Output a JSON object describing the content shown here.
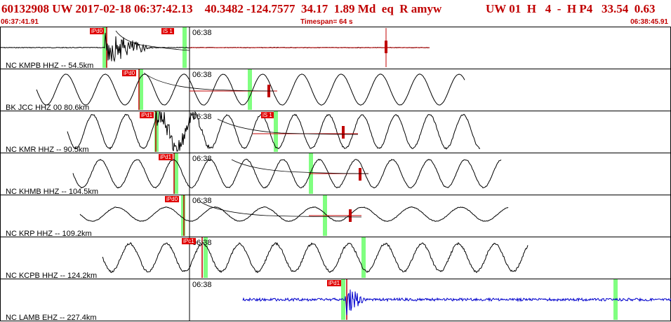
{
  "header": {
    "left": "60132908 UW 2017-02-18 06:37:42.13    40.3482 -124.7577  34.17  1.89 Md  eq  R amyw",
    "right": "UW 01  H   4  -  H P4   33.54  0.63"
  },
  "subbar": {
    "start": "06:37:41.91",
    "timespan": "Timespan=  64 s",
    "end": "06:38:45.91"
  },
  "panels": [
    {
      "label": "NC KMPB HHZ -- 54.5km",
      "time": "06:38",
      "picks": [
        "iPd0",
        "iS 1"
      ]
    },
    {
      "label": "BK JCC HHZ 00 80.6km",
      "time": "06:38",
      "picks": [
        "iPd0"
      ]
    },
    {
      "label": "NC KMR HHZ -- 90.5km",
      "time": "06:38",
      "picks": [
        "iPd1",
        "iS 1"
      ]
    },
    {
      "label": "NC KHMB HHZ -- 104.5km",
      "time": "06:38",
      "picks": [
        "iPd1"
      ]
    },
    {
      "label": "NC KRP HHZ -- 109.2km",
      "time": "06:38",
      "picks": [
        "iPd0"
      ]
    },
    {
      "label": "NC KCPB HHZ -- 124.2km",
      "time": "06:38",
      "picks": [
        "iPc1"
      ]
    },
    {
      "label": "NC LAMB EHZ -- 227.4km",
      "time": "06:38",
      "picks": [
        "iPd1"
      ]
    }
  ],
  "colors": {
    "accent": "#c00000",
    "pick": "#e00000",
    "marker": "#80ff80",
    "trace": "#000000",
    "trace_blue": "#0000cc"
  }
}
